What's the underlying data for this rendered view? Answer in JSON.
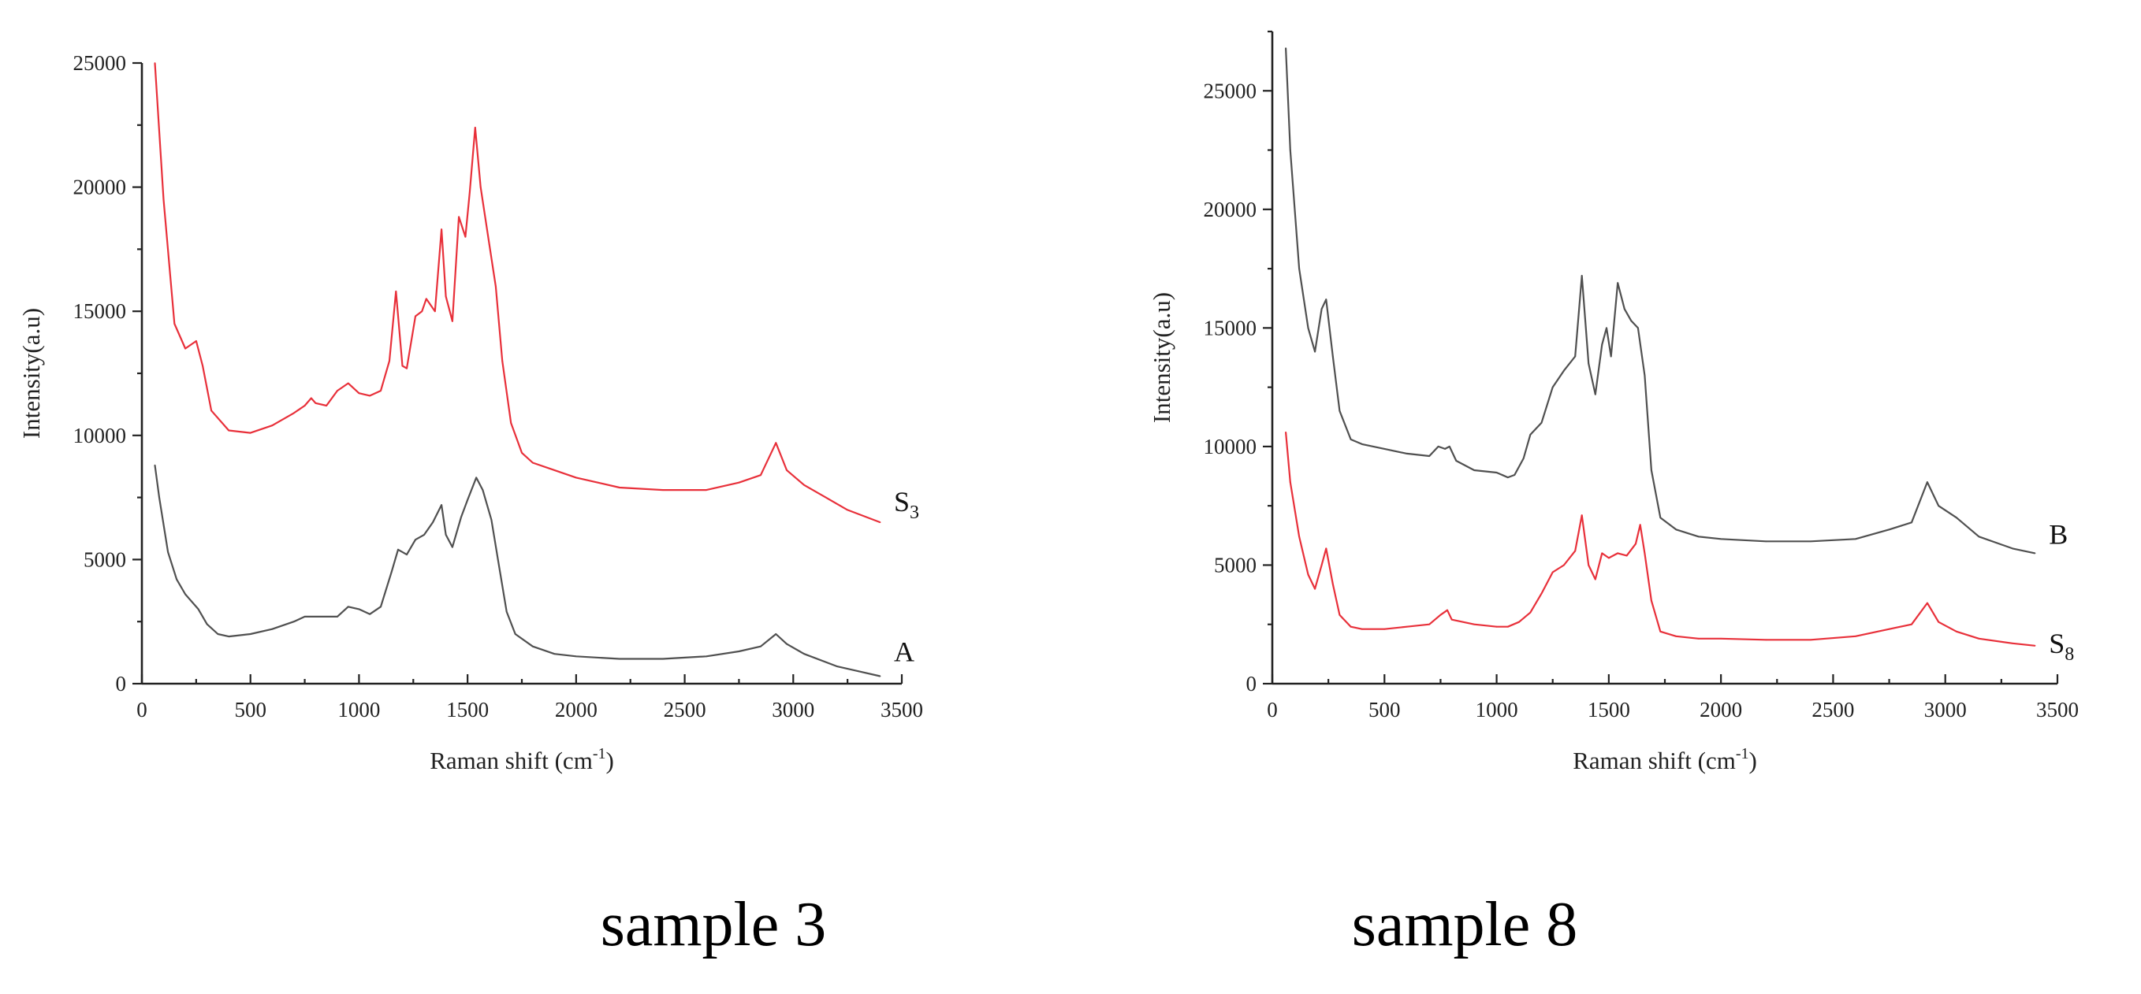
{
  "chart_data": [
    {
      "type": "line",
      "title": "",
      "xlabel": "Raman shift (cm",
      "xlabel_sup": "-1",
      "xlabel_end": ")",
      "ylabel": "Intensity(a.u)",
      "xlim": [
        0,
        3500
      ],
      "ylim": [
        0,
        25000
      ],
      "xticks": [
        0,
        500,
        1000,
        1500,
        2000,
        2500,
        3000,
        3500
      ],
      "yticks": [
        0,
        5000,
        10000,
        15000,
        20000,
        25000
      ],
      "grid": false,
      "caption": "sample 3",
      "series": [
        {
          "name": "S",
          "name_sub": "3",
          "color": "#e8303a",
          "points": [
            [
              60,
              25000
            ],
            [
              100,
              19500
            ],
            [
              150,
              14500
            ],
            [
              200,
              13500
            ],
            [
              250,
              13800
            ],
            [
              280,
              12800
            ],
            [
              320,
              11000
            ],
            [
              400,
              10200
            ],
            [
              500,
              10100
            ],
            [
              600,
              10400
            ],
            [
              700,
              10900
            ],
            [
              750,
              11200
            ],
            [
              780,
              11500
            ],
            [
              800,
              11300
            ],
            [
              850,
              11200
            ],
            [
              900,
              11800
            ],
            [
              950,
              12100
            ],
            [
              1000,
              11700
            ],
            [
              1050,
              11600
            ],
            [
              1100,
              11800
            ],
            [
              1140,
              13000
            ],
            [
              1170,
              15800
            ],
            [
              1200,
              12800
            ],
            [
              1220,
              12700
            ],
            [
              1260,
              14800
            ],
            [
              1290,
              15000
            ],
            [
              1310,
              15500
            ],
            [
              1350,
              15000
            ],
            [
              1380,
              18300
            ],
            [
              1400,
              15600
            ],
            [
              1430,
              14600
            ],
            [
              1460,
              18800
            ],
            [
              1490,
              18000
            ],
            [
              1510,
              19800
            ],
            [
              1535,
              22400
            ],
            [
              1560,
              20000
            ],
            [
              1600,
              17700
            ],
            [
              1630,
              16000
            ],
            [
              1660,
              13000
            ],
            [
              1700,
              10500
            ],
            [
              1750,
              9300
            ],
            [
              1800,
              8900
            ],
            [
              1900,
              8600
            ],
            [
              2000,
              8300
            ],
            [
              2100,
              8100
            ],
            [
              2200,
              7900
            ],
            [
              2400,
              7800
            ],
            [
              2600,
              7800
            ],
            [
              2750,
              8100
            ],
            [
              2850,
              8400
            ],
            [
              2920,
              9700
            ],
            [
              2970,
              8600
            ],
            [
              3050,
              8000
            ],
            [
              3150,
              7500
            ],
            [
              3250,
              7000
            ],
            [
              3400,
              6500
            ]
          ],
          "label_at": [
            3420,
            6950
          ]
        },
        {
          "name": "A",
          "color": "#505050",
          "points": [
            [
              60,
              8800
            ],
            [
              80,
              7500
            ],
            [
              120,
              5300
            ],
            [
              160,
              4200
            ],
            [
              200,
              3600
            ],
            [
              220,
              3400
            ],
            [
              260,
              3000
            ],
            [
              300,
              2400
            ],
            [
              350,
              2000
            ],
            [
              400,
              1900
            ],
            [
              500,
              2000
            ],
            [
              600,
              2200
            ],
            [
              700,
              2500
            ],
            [
              750,
              2700
            ],
            [
              800,
              2700
            ],
            [
              900,
              2700
            ],
            [
              950,
              3100
            ],
            [
              1000,
              3000
            ],
            [
              1050,
              2800
            ],
            [
              1100,
              3100
            ],
            [
              1150,
              4500
            ],
            [
              1180,
              5400
            ],
            [
              1220,
              5200
            ],
            [
              1260,
              5800
            ],
            [
              1300,
              6000
            ],
            [
              1340,
              6500
            ],
            [
              1380,
              7200
            ],
            [
              1400,
              6000
            ],
            [
              1430,
              5500
            ],
            [
              1470,
              6700
            ],
            [
              1500,
              7400
            ],
            [
              1540,
              8300
            ],
            [
              1570,
              7800
            ],
            [
              1610,
              6600
            ],
            [
              1640,
              5000
            ],
            [
              1680,
              2900
            ],
            [
              1720,
              2000
            ],
            [
              1800,
              1500
            ],
            [
              1900,
              1200
            ],
            [
              2000,
              1100
            ],
            [
              2200,
              1000
            ],
            [
              2400,
              1000
            ],
            [
              2600,
              1100
            ],
            [
              2750,
              1300
            ],
            [
              2850,
              1500
            ],
            [
              2920,
              2000
            ],
            [
              2970,
              1600
            ],
            [
              3050,
              1200
            ],
            [
              3200,
              700
            ],
            [
              3300,
              500
            ],
            [
              3400,
              300
            ]
          ],
          "label_at": [
            3420,
            900
          ]
        }
      ]
    },
    {
      "type": "line",
      "title": "",
      "xlabel": "Raman shift (cm",
      "xlabel_sup": "-1",
      "xlabel_end": ")",
      "ylabel": "Intensity(a.u)",
      "xlim": [
        0,
        3500
      ],
      "ylim": [
        0,
        27500
      ],
      "xticks": [
        0,
        500,
        1000,
        1500,
        2000,
        2500,
        3000,
        3500
      ],
      "yticks": [
        0,
        5000,
        10000,
        15000,
        20000,
        25000
      ],
      "grid": false,
      "caption": "sample 8",
      "series": [
        {
          "name": "B",
          "color": "#505050",
          "points": [
            [
              60,
              26800
            ],
            [
              80,
              22500
            ],
            [
              120,
              17500
            ],
            [
              160,
              15000
            ],
            [
              190,
              14000
            ],
            [
              220,
              15800
            ],
            [
              240,
              16200
            ],
            [
              270,
              13800
            ],
            [
              300,
              11500
            ],
            [
              350,
              10300
            ],
            [
              400,
              10100
            ],
            [
              500,
              9900
            ],
            [
              600,
              9700
            ],
            [
              700,
              9600
            ],
            [
              740,
              10000
            ],
            [
              770,
              9900
            ],
            [
              790,
              10000
            ],
            [
              820,
              9400
            ],
            [
              900,
              9000
            ],
            [
              1000,
              8900
            ],
            [
              1050,
              8700
            ],
            [
              1080,
              8800
            ],
            [
              1120,
              9500
            ],
            [
              1150,
              10500
            ],
            [
              1200,
              11000
            ],
            [
              1250,
              12500
            ],
            [
              1300,
              13200
            ],
            [
              1350,
              13800
            ],
            [
              1380,
              17200
            ],
            [
              1410,
              13500
            ],
            [
              1440,
              12200
            ],
            [
              1470,
              14300
            ],
            [
              1490,
              15000
            ],
            [
              1510,
              13800
            ],
            [
              1540,
              16900
            ],
            [
              1570,
              15800
            ],
            [
              1600,
              15300
            ],
            [
              1630,
              15000
            ],
            [
              1660,
              13000
            ],
            [
              1690,
              9000
            ],
            [
              1730,
              7000
            ],
            [
              1800,
              6500
            ],
            [
              1900,
              6200
            ],
            [
              2000,
              6100
            ],
            [
              2200,
              6000
            ],
            [
              2400,
              6000
            ],
            [
              2600,
              6100
            ],
            [
              2750,
              6500
            ],
            [
              2850,
              6800
            ],
            [
              2920,
              8500
            ],
            [
              2970,
              7500
            ],
            [
              3050,
              7000
            ],
            [
              3150,
              6200
            ],
            [
              3300,
              5700
            ],
            [
              3400,
              5500
            ]
          ],
          "label_at": [
            3420,
            5900
          ]
        },
        {
          "name": "S",
          "name_sub": "8",
          "color": "#e8303a",
          "points": [
            [
              60,
              10600
            ],
            [
              80,
              8500
            ],
            [
              120,
              6200
            ],
            [
              160,
              4600
            ],
            [
              190,
              4000
            ],
            [
              220,
              5000
            ],
            [
              240,
              5700
            ],
            [
              270,
              4200
            ],
            [
              300,
              2900
            ],
            [
              350,
              2400
            ],
            [
              400,
              2300
            ],
            [
              500,
              2300
            ],
            [
              600,
              2400
            ],
            [
              700,
              2500
            ],
            [
              750,
              2900
            ],
            [
              780,
              3100
            ],
            [
              800,
              2700
            ],
            [
              900,
              2500
            ],
            [
              1000,
              2400
            ],
            [
              1050,
              2400
            ],
            [
              1100,
              2600
            ],
            [
              1150,
              3000
            ],
            [
              1200,
              3800
            ],
            [
              1250,
              4700
            ],
            [
              1300,
              5000
            ],
            [
              1350,
              5600
            ],
            [
              1380,
              7100
            ],
            [
              1410,
              5000
            ],
            [
              1440,
              4400
            ],
            [
              1470,
              5500
            ],
            [
              1500,
              5300
            ],
            [
              1540,
              5500
            ],
            [
              1580,
              5400
            ],
            [
              1620,
              5900
            ],
            [
              1640,
              6700
            ],
            [
              1660,
              5500
            ],
            [
              1690,
              3500
            ],
            [
              1730,
              2200
            ],
            [
              1800,
              2000
            ],
            [
              1900,
              1900
            ],
            [
              2000,
              1900
            ],
            [
              2200,
              1850
            ],
            [
              2400,
              1850
            ],
            [
              2600,
              2000
            ],
            [
              2750,
              2300
            ],
            [
              2850,
              2500
            ],
            [
              2920,
              3400
            ],
            [
              2970,
              2600
            ],
            [
              3050,
              2200
            ],
            [
              3150,
              1900
            ],
            [
              3300,
              1700
            ],
            [
              3400,
              1600
            ]
          ],
          "label_at": [
            3420,
            1300
          ]
        }
      ]
    }
  ]
}
